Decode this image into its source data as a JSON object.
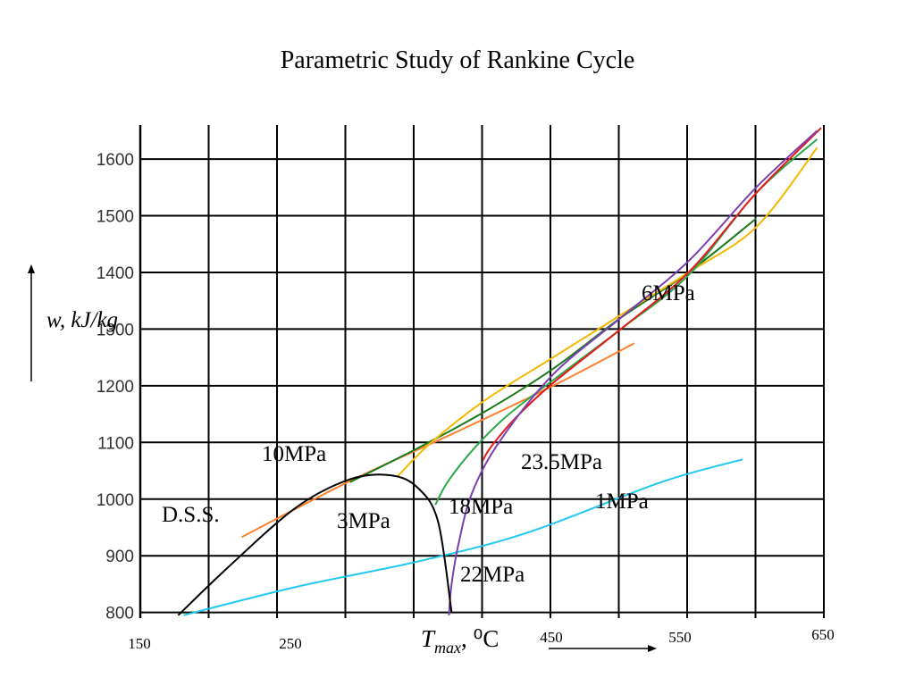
{
  "title": "Parametric Study of Rankine Cycle",
  "chart_data": {
    "type": "line",
    "title": "Parametric Study of Rankine Cycle",
    "ylabel": "w, kJ/kg",
    "xlabel_main": "T",
    "xlabel_sub": "max",
    "xlabel_unit": ", ⁰C",
    "x_tick_labels": [
      "150",
      "250",
      "450",
      "550",
      "650"
    ],
    "y_tick_labels": [
      "800",
      "900",
      "1000",
      "1100",
      "1200",
      "1300",
      "1400",
      "1500",
      "1600"
    ],
    "x_ticks_values": [
      150,
      250,
      450,
      550,
      650
    ],
    "y_ticks_values": [
      800,
      900,
      1000,
      1100,
      1200,
      1300,
      1400,
      1500,
      1600
    ],
    "xlim": [
      145,
      650
    ],
    "ylim": [
      790,
      1660
    ],
    "grid": true,
    "series": [
      {
        "name": "1MPa",
        "color": "#1ec8f0",
        "x": [
          177,
          260,
          350,
          430,
          530,
          590
        ],
        "y": [
          795,
          845,
          890,
          940,
          1030,
          1070
        ]
      },
      {
        "name": "3MPa",
        "color": "#ff7f2a",
        "x": [
          220,
          300,
          380,
          450,
          510
        ],
        "y": [
          933,
          1032,
          1120,
          1200,
          1275
        ]
      },
      {
        "name": "10MPa",
        "color": "#1a7a1a",
        "x": [
          300,
          350,
          400,
          450,
          500,
          550,
          600
        ],
        "y": [
          1030,
          1090,
          1155,
          1230,
          1320,
          1400,
          1495
        ]
      },
      {
        "name": "6MPa",
        "color": "#f5b800",
        "x": [
          335,
          360,
          400,
          450,
          500,
          550,
          600,
          645
        ],
        "y": [
          1040,
          1100,
          1175,
          1250,
          1325,
          1400,
          1480,
          1620
        ]
      },
      {
        "name": "18MPa",
        "color": "#2aa84a",
        "x": [
          363,
          372,
          390,
          415,
          450,
          500,
          550,
          600,
          645
        ],
        "y": [
          990,
          1030,
          1085,
          1145,
          1210,
          1300,
          1395,
          1540,
          1635
        ]
      },
      {
        "name": "23.5MPa",
        "color": "#e41a1c",
        "x": [
          398,
          402,
          410,
          425,
          450,
          500,
          550,
          600,
          648
        ],
        "y": [
          1068,
          1085,
          1110,
          1150,
          1205,
          1300,
          1400,
          1540,
          1655
        ]
      },
      {
        "name": "22MPa",
        "color": "#7a3fb3",
        "x": [
          373,
          375,
          380,
          390,
          410,
          450,
          500,
          550,
          600,
          645
        ],
        "y": [
          795,
          850,
          920,
          1010,
          1100,
          1220,
          1320,
          1420,
          1550,
          1650
        ]
      },
      {
        "name": "D.S.S.",
        "color": "#000000",
        "x": [
          173,
          210,
          260,
          300,
          330,
          350,
          365,
          375
        ],
        "y": [
          795,
          880,
          985,
          1035,
          1042,
          1020,
          960,
          800
        ]
      }
    ],
    "labels": [
      {
        "text": "10MPa",
        "series": "10MPa"
      },
      {
        "text": "6MPa",
        "series": "6MPa"
      },
      {
        "text": "23.5MPa",
        "series": "23.5MPa"
      },
      {
        "text": "18MPa",
        "series": "18MPa"
      },
      {
        "text": "1MPa",
        "series": "1MPa"
      },
      {
        "text": "3MPa",
        "series": "3MPa"
      },
      {
        "text": "22MPa",
        "series": "22MPa"
      },
      {
        "text": "D.S.S.",
        "series": "D.S.S."
      }
    ]
  }
}
